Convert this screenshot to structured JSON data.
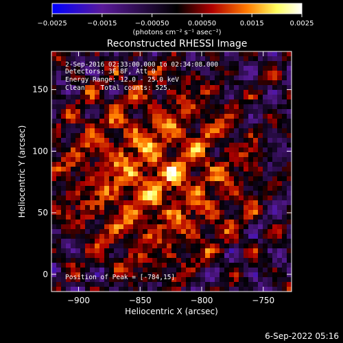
{
  "chart_data": {
    "type": "heatmap",
    "title": "Reconstructed RHESSI Image",
    "xlabel": "Heliocentric X (arcsec)",
    "ylabel": "Heliocentric Y (arcsec)",
    "xlim": [
      -922,
      -727
    ],
    "ylim": [
      -14,
      181
    ],
    "x_ticks": [
      -900,
      -850,
      -800,
      -750
    ],
    "y_ticks": [
      0,
      50,
      100,
      150
    ],
    "x_tick_labels": [
      "−900",
      "−850",
      "−800",
      "−750"
    ],
    "y_tick_labels": [
      "0",
      "50",
      "100",
      "150"
    ],
    "colorbar": {
      "range": [
        -0.0025,
        0.0025
      ],
      "ticks": [
        -0.0025,
        -0.0015,
        -0.0005,
        0.0005,
        0.0015,
        0.0025
      ],
      "tick_labels": [
        "−0.0025",
        "−0.0015",
        "−0.00050",
        "0.00050",
        "0.0015",
        "0.0025"
      ],
      "unit_label": "(photons cm⁻² s⁻¹ asec⁻²)",
      "colors": [
        "#0000ff",
        "#5a1a9a",
        "#000000",
        "#b00000",
        "#ff7a00",
        "#ffff60",
        "#ffffff"
      ]
    },
    "annotations": {
      "time_range": "2-Sep-2016 02:33:00.000 to 02:34:08.000",
      "detectors": "Detectors: 3F 8F, Att 0",
      "energy_range": "Energy Range: 12.0 - 25.0 keV",
      "method_counts": "Clean    Total counts: 525.",
      "peak_position": "Position of Peak = [-784,15]"
    },
    "grid": false
  },
  "footer": {
    "timestamp": "6-Sep-2022 05:16"
  }
}
